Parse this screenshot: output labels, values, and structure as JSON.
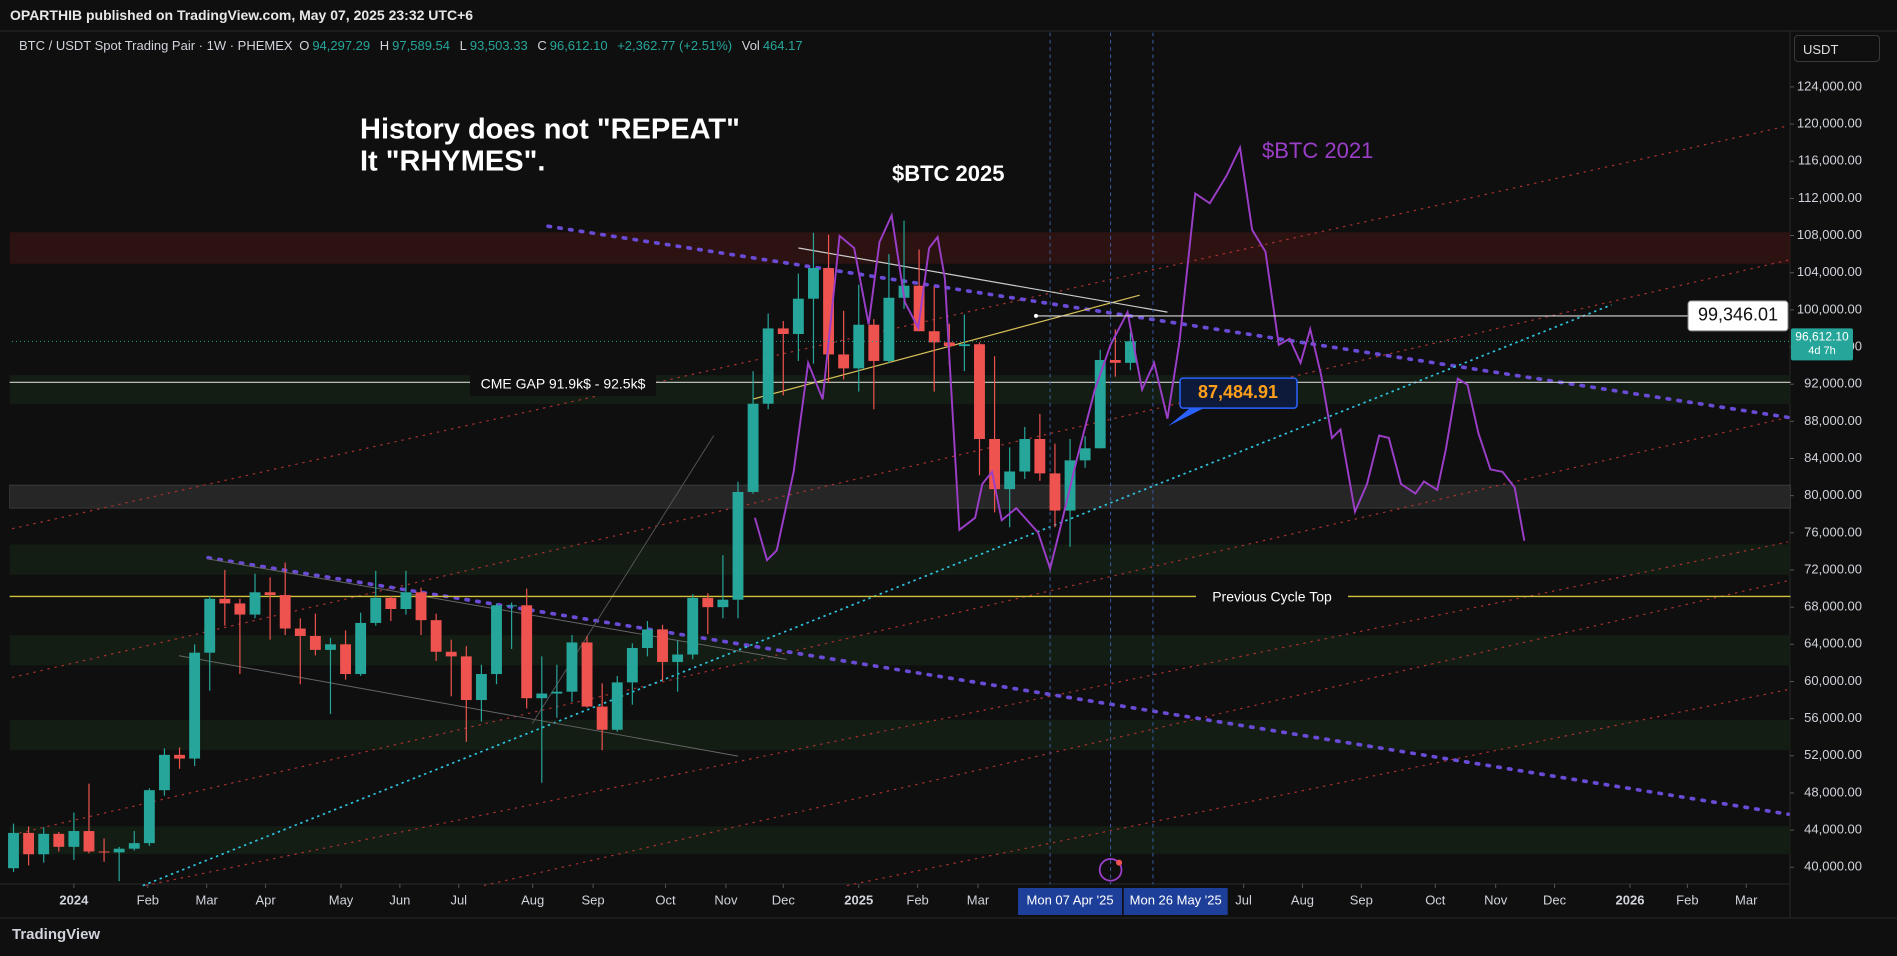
{
  "header": {
    "publisher": "OPARTHIB published on TradingView.com, May 07, 2025 23:32 UTC+6",
    "symbol": "BTC / USDT Spot Trading Pair · 1W · PHEMEX",
    "ohlc": [
      {
        "key": "O",
        "value": "94,297.29"
      },
      {
        "key": "H",
        "value": "97,589.54"
      },
      {
        "key": "L",
        "value": "93,503.33"
      },
      {
        "key": "C",
        "value": "96,612.10"
      }
    ],
    "change": "+2,362.77 (+2.51%)",
    "volume_key": "Vol",
    "volume": "464.17",
    "currency": "USDT",
    "logo": "TradingView"
  },
  "chart_data": {
    "type": "candlestick",
    "up_color": "#26a69a",
    "down_color": "#ef5350",
    "open": [
      39900,
      43700,
      41400,
      43600,
      42200,
      43900,
      41700,
      41600,
      42000,
      42600,
      48300,
      52100,
      51700,
      63100,
      68900,
      68400,
      67200,
      69600,
      69300,
      65700,
      64900,
      63400,
      64000,
      60800,
      66300,
      69000,
      67800,
      69600,
      66600,
      63200,
      62700,
      58000,
      60800,
      68200,
      68200,
      58200,
      58700,
      58900,
      64200,
      57300,
      54800,
      59900,
      63600,
      65600,
      62100,
      62900,
      69000,
      68000,
      68800,
      80400,
      89900,
      98000,
      97400,
      101200,
      104500,
      95200,
      93700,
      98400,
      94500,
      101300,
      102600,
      97700,
      96500,
      96100,
      96300,
      86100,
      80700,
      82600,
      86100,
      82400,
      78400,
      83800,
      85100,
      94600,
      94297.29
    ],
    "high": [
      44700,
      44400,
      44300,
      43800,
      45900,
      49000,
      43100,
      42200,
      43900,
      48500,
      52800,
      52900,
      64000,
      69200,
      72000,
      68900,
      71600,
      71200,
      72800,
      66800,
      67300,
      64700,
      65500,
      67400,
      71900,
      69200,
      71900,
      70100,
      67300,
      64500,
      63800,
      61800,
      68400,
      68500,
      70000,
      62700,
      61800,
      65000,
      64900,
      59800,
      60600,
      64100,
      66500,
      66100,
      64400,
      69400,
      69500,
      73600,
      81500,
      93400,
      99600,
      98800,
      103900,
      108300,
      108100,
      99900,
      102700,
      99000,
      106000,
      109600,
      106500,
      102500,
      98500,
      99500,
      96500,
      95000,
      85200,
      87400,
      88800,
      85600,
      86100,
      86400,
      95700,
      97900,
      97589.54
    ],
    "low": [
      39500,
      40200,
      40500,
      41700,
      40800,
      41500,
      40600,
      38500,
      41800,
      42300,
      47700,
      50600,
      50900,
      59000,
      66000,
      60800,
      66800,
      64500,
      65000,
      59700,
      62800,
      56500,
      60200,
      60600,
      66000,
      66500,
      67200,
      65000,
      62200,
      58400,
      53500,
      55700,
      59700,
      63500,
      57100,
      49100,
      56100,
      57800,
      57200,
      52600,
      54600,
      57500,
      62700,
      60100,
      58900,
      62400,
      65100,
      66800,
      66800,
      80200,
      89300,
      90800,
      94500,
      94200,
      92200,
      92500,
      91200,
      89300,
      94300,
      100100,
      97700,
      91200,
      94100,
      93400,
      82200,
      78200,
      76600,
      81800,
      81600,
      76600,
      74500,
      83000,
      85100,
      92800,
      93503.33
    ],
    "close": [
      43700,
      41400,
      43600,
      42200,
      43900,
      41700,
      41600,
      42000,
      42600,
      48300,
      52100,
      51700,
      63100,
      68900,
      68400,
      67200,
      69600,
      69300,
      65700,
      64900,
      63400,
      64000,
      60800,
      66300,
      69000,
      67800,
      69600,
      66600,
      63200,
      62700,
      58000,
      60800,
      68200,
      68200,
      58200,
      58700,
      58900,
      64200,
      57300,
      54800,
      59900,
      63600,
      65600,
      62100,
      62900,
      69000,
      68000,
      68800,
      80400,
      89900,
      98000,
      97400,
      101200,
      104500,
      95200,
      93700,
      98400,
      94500,
      101300,
      102600,
      97700,
      96500,
      96100,
      96300,
      86100,
      80700,
      82600,
      86100,
      82400,
      78400,
      83800,
      85100,
      94600,
      94300,
      96612.1
    ],
    "xlim": [
      -0.1,
      117.7
    ],
    "xticks": [
      {
        "value": 4.0,
        "label": "2024"
      },
      {
        "value": 8.9,
        "label": "Feb"
      },
      {
        "value": 12.8,
        "label": "Mar"
      },
      {
        "value": 16.7,
        "label": "Apr"
      },
      {
        "value": 21.7,
        "label": "May"
      },
      {
        "value": 25.6,
        "label": "Jun"
      },
      {
        "value": 29.5,
        "label": "Jul"
      },
      {
        "value": 34.4,
        "label": "Aug"
      },
      {
        "value": 38.4,
        "label": "Sep"
      },
      {
        "value": 43.2,
        "label": "Oct"
      },
      {
        "value": 47.2,
        "label": "Nov"
      },
      {
        "value": 51.0,
        "label": "Dec"
      },
      {
        "value": 56.0,
        "label": "2025"
      },
      {
        "value": 59.9,
        "label": "Feb"
      },
      {
        "value": 63.9,
        "label": "Mar"
      },
      {
        "value": 81.5,
        "label": "Jul"
      },
      {
        "value": 85.4,
        "label": "Aug"
      },
      {
        "value": 89.3,
        "label": "Sep"
      },
      {
        "value": 94.2,
        "label": "Oct"
      },
      {
        "value": 98.2,
        "label": "Nov"
      },
      {
        "value": 102.1,
        "label": "Dec"
      },
      {
        "value": 107.1,
        "label": "2026"
      },
      {
        "value": 110.9,
        "label": "Feb"
      },
      {
        "value": 114.8,
        "label": "Mar"
      }
    ],
    "crosshair_labels": [
      {
        "value": 70,
        "label": "Mon 07 Apr '25"
      },
      {
        "value": 77,
        "label": "Mon 26 May '25"
      }
    ],
    "ylim": [
      38200,
      129800
    ],
    "yticks": [
      {
        "value": 40000,
        "label": "40,000.00"
      },
      {
        "value": 44000,
        "label": "44,000.00"
      },
      {
        "value": 48000,
        "label": "48,000.00"
      },
      {
        "value": 52000,
        "label": "52,000.00"
      },
      {
        "value": 56000,
        "label": "56,000.00"
      },
      {
        "value": 60000,
        "label": "60,000.00"
      },
      {
        "value": 64000,
        "label": "64,000.00"
      },
      {
        "value": 68000,
        "label": "68,000.00"
      },
      {
        "value": 72000,
        "label": "72,000.00"
      },
      {
        "value": 76000,
        "label": "76,000.00"
      },
      {
        "value": 80000,
        "label": "80,000.00"
      },
      {
        "value": 84000,
        "label": "84,000.00"
      },
      {
        "value": 88000,
        "label": "88,000.00"
      },
      {
        "value": 92000,
        "label": "92,000.00"
      },
      {
        "value": 96000,
        "label": "96,000.00"
      },
      {
        "value": 100000,
        "label": "100,000.00"
      },
      {
        "value": 104000,
        "label": "104,000.00"
      },
      {
        "value": 108000,
        "label": "108,000.00"
      },
      {
        "value": 112000,
        "label": "112,000.00"
      },
      {
        "value": 116000,
        "label": "116,000.00"
      },
      {
        "value": 120000,
        "label": "120,000.00"
      },
      {
        "value": 124000,
        "label": "124,000.00"
      }
    ],
    "grid": false,
    "last_price": {
      "value": 96612.1,
      "label": "96,612.10",
      "countdown": "4d 7h"
    },
    "price_lines": [
      {
        "value": 99346.01,
        "label": "99,346.01"
      }
    ],
    "price_callouts": [
      {
        "value": 87484.91,
        "label": "87,484.91"
      }
    ],
    "annotations": {
      "headline": [
        "History does not \"REPEAT\"",
        "It \"RHYMES\"."
      ],
      "btc_2025": "$BTC 2025",
      "btc_2021": "$BTC 2021",
      "cme_gap": "CME GAP  91.9k$ - 92.5k$",
      "previous_cycle_top": "Previous Cycle Top"
    }
  }
}
